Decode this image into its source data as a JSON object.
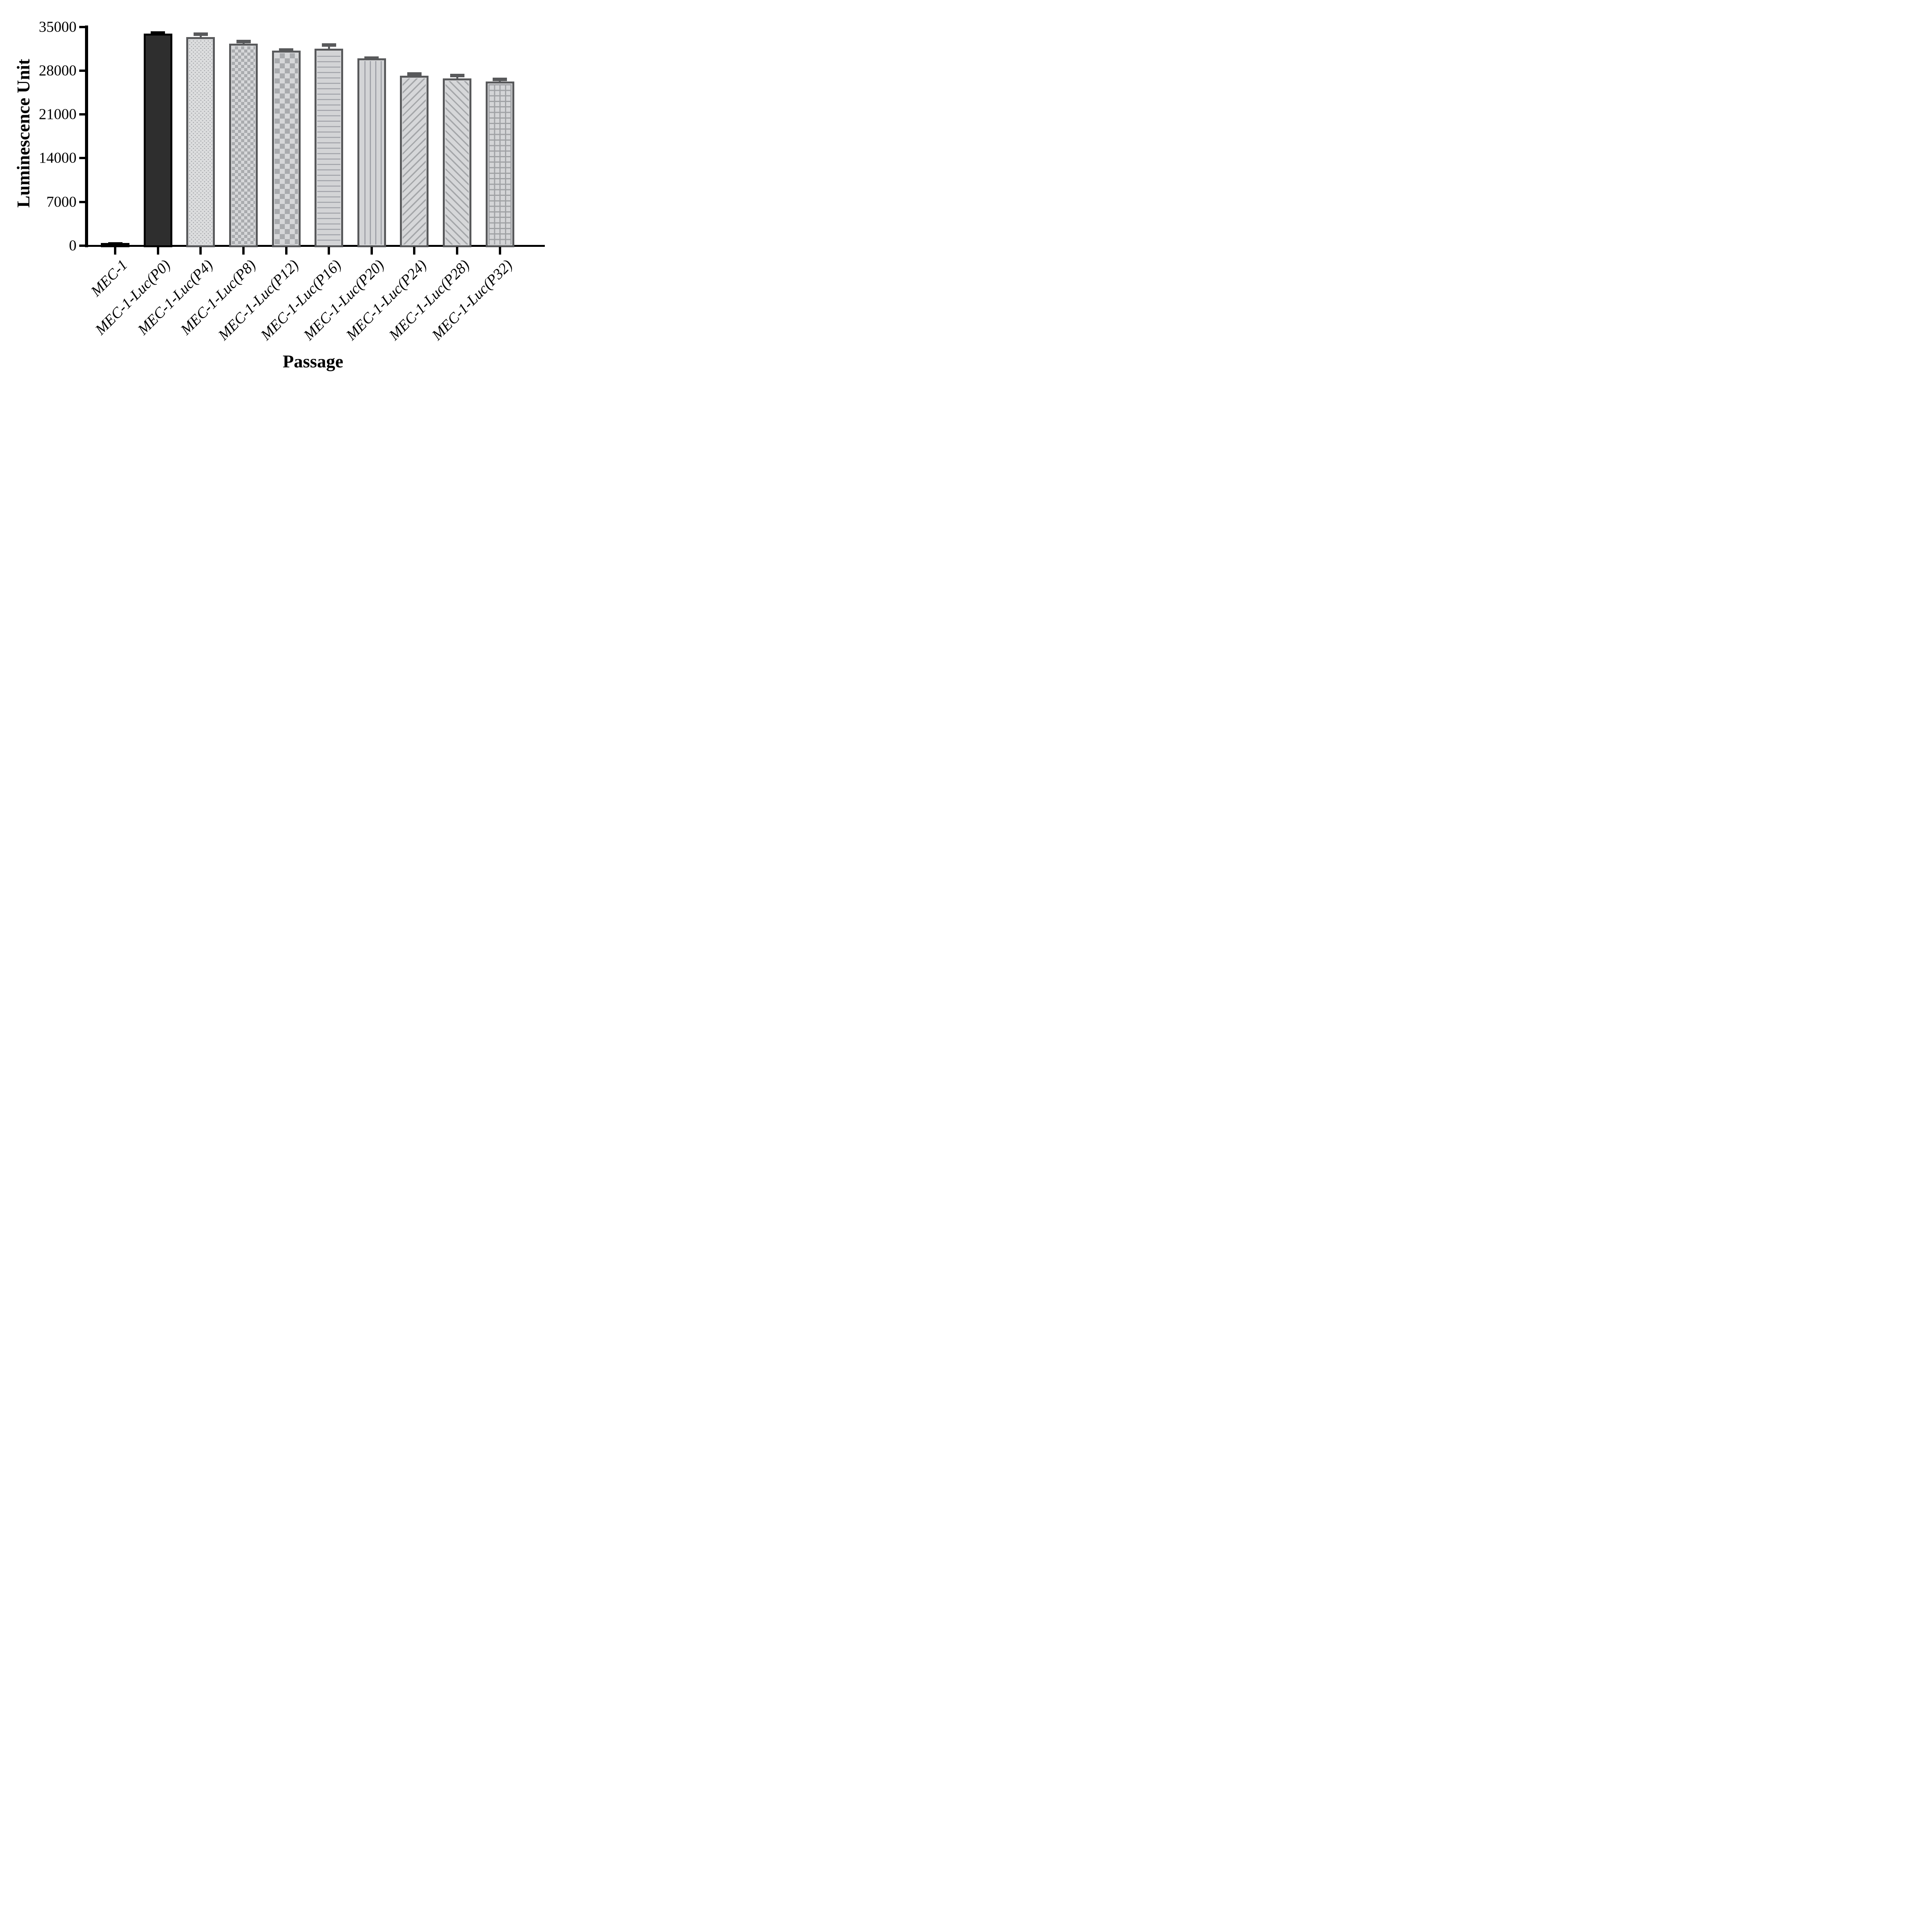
{
  "figure": {
    "y_axis": {
      "title": "Luminescence Unit",
      "tick_labels": [
        "0",
        "7000",
        "14000",
        "21000",
        "28000",
        "35000"
      ]
    },
    "x_axis": {
      "title": "Passage"
    }
  },
  "chart_data": {
    "type": "bar",
    "title": "",
    "xlabel": "Passage",
    "ylabel": "Luminescence Unit",
    "ylim": [
      0,
      35000
    ],
    "yticks": [
      0,
      7000,
      14000,
      21000,
      28000,
      35000
    ],
    "grid": false,
    "legend": "none",
    "categories": [
      "MEC-1",
      "MEC-1-Luc(P0)",
      "MEC-1-Luc(P4)",
      "MEC-1-Luc(P8)",
      "MEC-1-Luc(P12)",
      "MEC-1-Luc(P16)",
      "MEC-1-Luc(P20)",
      "MEC-1-Luc(P24)",
      "MEC-1-Luc(P28)",
      "MEC-1-Luc(P32)"
    ],
    "values": [
      410,
      33950,
      33340,
      32340,
      31210,
      31490,
      29940,
      27190,
      26750,
      26270
    ],
    "errors_plus": [
      120,
      370,
      740,
      570,
      370,
      890,
      350,
      540,
      750,
      600
    ],
    "bar_patterns": [
      "solid-black",
      "solid-dark",
      "dots",
      "checker-small",
      "checker-large",
      "hlines",
      "vlines",
      "diag-up",
      "diag-down",
      "grid"
    ]
  },
  "colors": {
    "axis": "#000000",
    "bar_dark_fill": "#2e2e2e",
    "bar_border_dark": "#000000",
    "bar_border_gray": "#58595b",
    "pattern_light": "#d6d7d9",
    "pattern_mid": "#a4a6a9"
  }
}
